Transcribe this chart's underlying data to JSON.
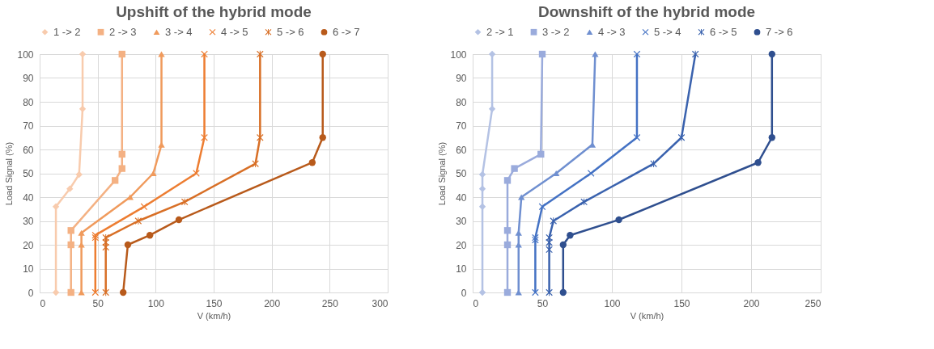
{
  "chart_data": [
    {
      "type": "line",
      "title": "Upshift of the hybrid mode",
      "xlabel": "V (km/h)",
      "ylabel": "Load Signal (%)",
      "xlim": [
        0,
        300
      ],
      "xticks": [
        0,
        50,
        100,
        150,
        200,
        250,
        300
      ],
      "ylim": [
        0,
        100
      ],
      "yticks": [
        0,
        10,
        20,
        30,
        40,
        50,
        60,
        70,
        80,
        90,
        100
      ],
      "grid": true,
      "legend": "top",
      "line_style": "solid",
      "series": [
        {
          "name": "1 -> 2",
          "color": "#f8cbad",
          "marker": "diamond",
          "x": [
            14,
            14,
            26,
            34,
            37,
            37
          ],
          "values": [
            0,
            36,
            43.5,
            49.5,
            77,
            100
          ]
        },
        {
          "name": "2 -> 3",
          "color": "#f4b183",
          "marker": "square",
          "x": [
            27,
            27,
            27,
            65,
            71,
            71,
            71
          ],
          "values": [
            0,
            20,
            26,
            47,
            52,
            58,
            100
          ]
        },
        {
          "name": "3 -> 4",
          "color": "#f09a5c",
          "marker": "triangle",
          "x": [
            36,
            36,
            36,
            78,
            98,
            105,
            105
          ],
          "values": [
            0,
            20,
            25,
            40,
            50,
            62,
            100
          ]
        },
        {
          "name": "4 -> 5",
          "color": "#ed7d31",
          "marker": "cross",
          "x": [
            48,
            48,
            48,
            90,
            135,
            142,
            142
          ],
          "values": [
            0,
            23,
            24,
            36,
            50,
            65,
            100
          ]
        },
        {
          "name": "5 -> 6",
          "color": "#d86f26",
          "marker": "star",
          "x": [
            57,
            57,
            57,
            57,
            85,
            125,
            186,
            190,
            190
          ],
          "values": [
            0,
            19,
            21,
            23,
            30,
            38,
            54,
            65,
            100
          ]
        },
        {
          "name": "6 -> 7",
          "color": "#b85a1b",
          "marker": "circle",
          "x": [
            72,
            76,
            95,
            120,
            235,
            244,
            244
          ],
          "values": [
            0,
            20,
            24,
            30.5,
            54.5,
            65,
            100
          ]
        }
      ]
    },
    {
      "type": "line",
      "title": "Downshift of the hybrid mode",
      "xlabel": "V (km/h)",
      "ylabel": "Load Signal (%)",
      "xlim": [
        0,
        250
      ],
      "xticks": [
        0,
        50,
        100,
        150,
        200,
        250
      ],
      "ylim": [
        0,
        100
      ],
      "yticks": [
        0,
        10,
        20,
        30,
        40,
        50,
        60,
        70,
        80,
        90,
        100
      ],
      "grid": true,
      "legend": "top",
      "line_style": "solid",
      "series": [
        {
          "name": "2 -> 1",
          "color": "#b4c2e4",
          "marker": "diamond",
          "x": [
            7,
            7,
            7,
            7,
            14,
            14
          ],
          "values": [
            0,
            36,
            43.5,
            49.5,
            77,
            100
          ]
        },
        {
          "name": "3 -> 2",
          "color": "#9aabdc",
          "marker": "square",
          "x": [
            25,
            25,
            25,
            25,
            30,
            49,
            50
          ],
          "values": [
            0,
            20,
            26,
            47,
            52,
            58,
            100
          ]
        },
        {
          "name": "4 -> 3",
          "color": "#6f8fd0",
          "marker": "triangle",
          "x": [
            33,
            33,
            33,
            35,
            60,
            86,
            88
          ],
          "values": [
            0,
            20,
            25,
            40,
            50,
            62,
            100
          ]
        },
        {
          "name": "5 -> 4",
          "color": "#4472c4",
          "marker": "cross",
          "x": [
            45,
            45,
            45,
            50,
            85,
            118,
            118
          ],
          "values": [
            0,
            22,
            23,
            36,
            50,
            65,
            100
          ]
        },
        {
          "name": "6 -> 5",
          "color": "#3a62ae",
          "marker": "star",
          "x": [
            55,
            55,
            55,
            55,
            58,
            80,
            130,
            150,
            160
          ],
          "values": [
            0,
            18,
            21,
            23,
            30,
            38,
            54,
            65,
            100
          ]
        },
        {
          "name": "7 -> 6",
          "color": "#2f4f8f",
          "marker": "circle",
          "x": [
            65,
            65,
            70,
            105,
            205,
            215,
            215
          ],
          "values": [
            0,
            20,
            24,
            30.5,
            54.5,
            65,
            100
          ]
        }
      ]
    }
  ]
}
